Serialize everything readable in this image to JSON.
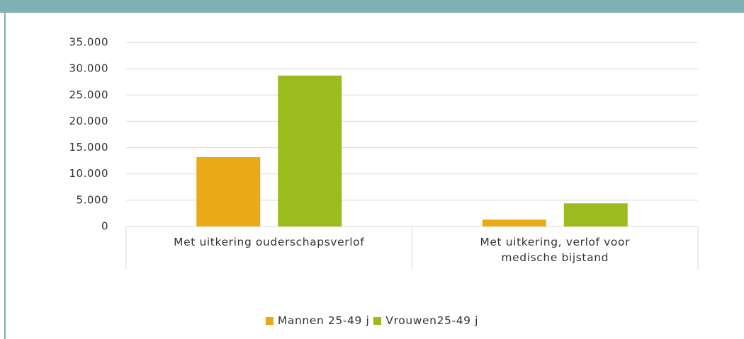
{
  "chart_data": {
    "type": "bar",
    "categories": [
      "Met uitkering ouderschapsverlof",
      "Met uitkering, verlof voor medische bijstand"
    ],
    "series": [
      {
        "name": "Mannen 25-49 j",
        "color": "#eaa916",
        "values": [
          13200,
          1300
        ]
      },
      {
        "name": "Vrouwen25-49 j",
        "color": "#9bbb1e",
        "values": [
          28700,
          4400
        ]
      }
    ],
    "ylim": [
      0,
      35000
    ],
    "yticks": [
      0,
      {
        "value": 5000,
        "label": "5.000"
      },
      {
        "value": 10000,
        "label": "10.000"
      },
      {
        "value": 15000,
        "label": "15.000"
      },
      {
        "value": 20000,
        "label": "20.000"
      },
      {
        "value": 25000,
        "label": "25.000"
      },
      {
        "value": 30000,
        "label": "30.000"
      },
      {
        "value": 35000,
        "label": "35.000"
      }
    ],
    "grid": true,
    "legend": "bottom"
  }
}
